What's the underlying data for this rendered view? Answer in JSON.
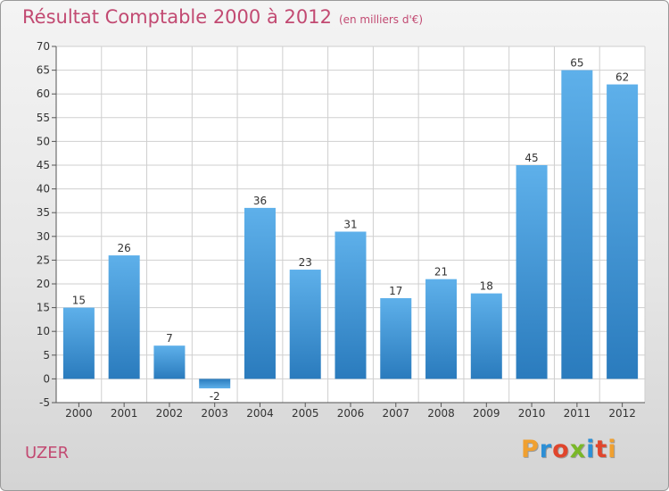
{
  "chart_data": {
    "type": "bar",
    "title": "Résultat Comptable 2000 à 2012",
    "subtitle": "(en milliers d'€)",
    "categories": [
      "2000",
      "2001",
      "2002",
      "2003",
      "2004",
      "2005",
      "2006",
      "2007",
      "2008",
      "2009",
      "2010",
      "2011",
      "2012"
    ],
    "values": [
      15,
      26,
      7,
      -2,
      36,
      23,
      31,
      17,
      21,
      18,
      45,
      65,
      62
    ],
    "ylim": [
      -5,
      70
    ],
    "yticks": [
      -5,
      0,
      5,
      10,
      15,
      20,
      25,
      30,
      35,
      40,
      45,
      50,
      55,
      60,
      65,
      70
    ],
    "grid": true,
    "bar_color_light": "#5eb0ea",
    "bar_color_dark": "#2a7bbd"
  },
  "footer": {
    "commune": "UZER",
    "logo_text": "Proxiti",
    "logo_colors": [
      "#f0a030",
      "#2c8fd6",
      "#e0452c",
      "#7ab828",
      "#2c8fd6",
      "#e0452c",
      "#f0a030"
    ]
  },
  "colors": {
    "title": "#c24a72",
    "grid": "#cfcfcf",
    "axis": "#555555"
  }
}
